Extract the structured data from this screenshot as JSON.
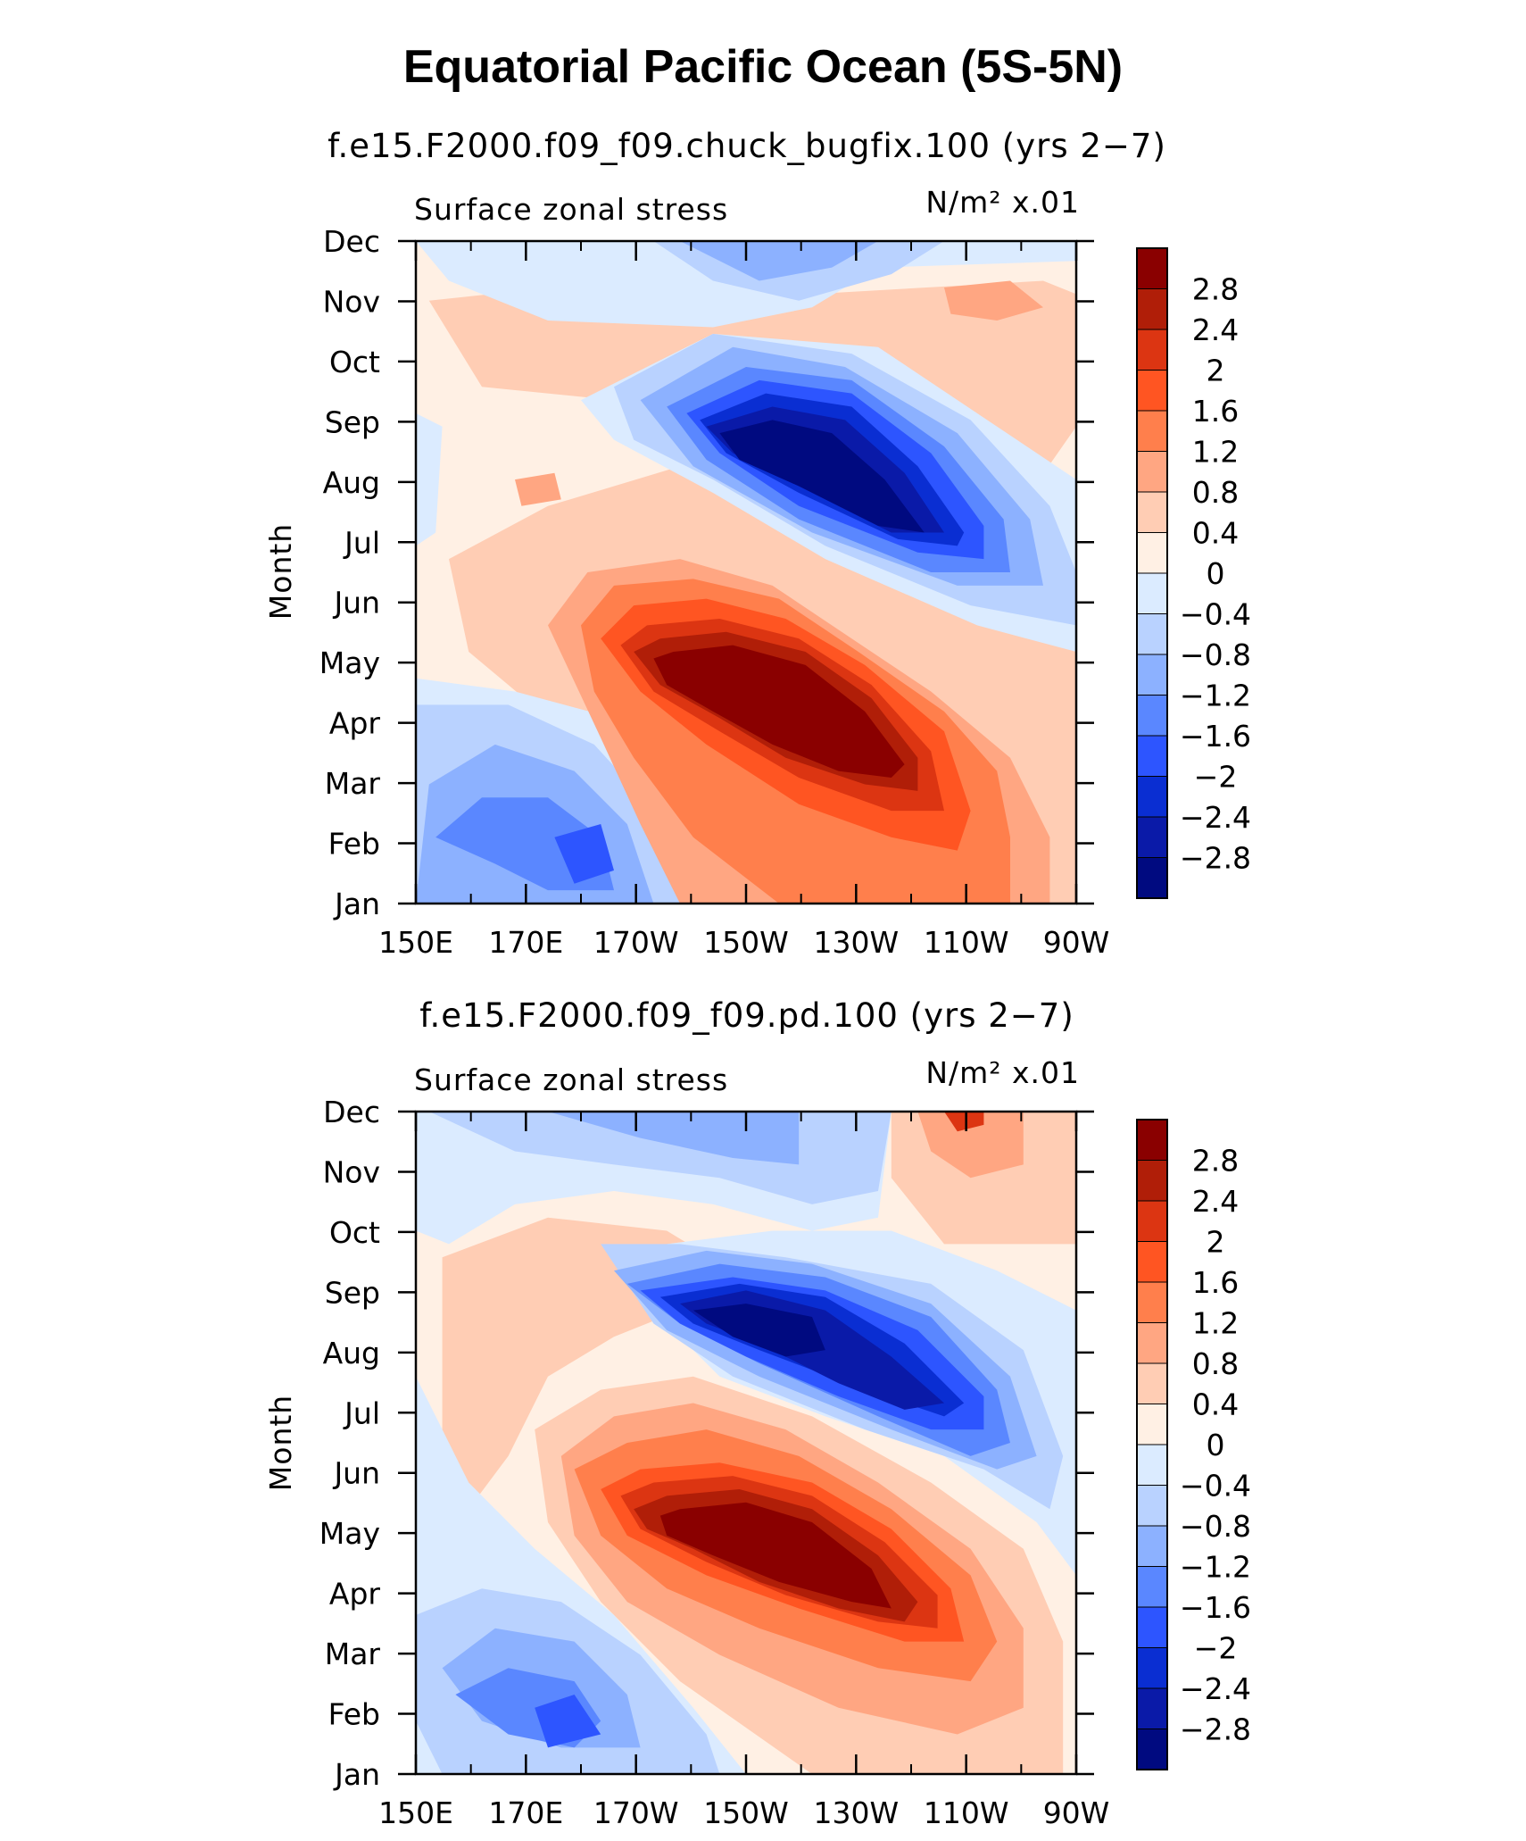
{
  "figure": {
    "title": "Equatorial Pacific Ocean (5S-5N)"
  },
  "chart_data": [
    {
      "type": "heatmap",
      "title": "f.e15.F2000.f09_f09.chuck_bugfix.100 (yrs 2−7)",
      "left_label": "Surface zonal stress",
      "right_label": "N/m² x.01",
      "xlabel": "",
      "ylabel": "Month",
      "x_ticks": [
        "150E",
        "170E",
        "170W",
        "150W",
        "130W",
        "110W",
        "90W"
      ],
      "x_values": [
        150,
        170,
        190,
        210,
        230,
        250,
        270
      ],
      "xlim": [
        150,
        270
      ],
      "y_ticks": [
        "Jan",
        "Feb",
        "Mar",
        "Apr",
        "May",
        "Jun",
        "Jul",
        "Aug",
        "Sep",
        "Oct",
        "Nov",
        "Dec"
      ],
      "ylim": [
        1,
        12
      ],
      "levels": [
        -2.8,
        -2.4,
        -2,
        -1.6,
        -1.2,
        -0.8,
        -0.4,
        0,
        0.4,
        0.8,
        1.2,
        1.6,
        2,
        2.4,
        2.8
      ],
      "features": [
        {
          "name": "positive core",
          "lon": 205,
          "month": 3.9,
          "value": 3.0
        },
        {
          "name": "negative core",
          "lon": 218,
          "month": 8.0,
          "value": -3.0
        },
        {
          "name": "west negative",
          "lon": 176,
          "month": 1.8,
          "value": -1.8
        }
      ]
    },
    {
      "type": "heatmap",
      "title": "f.e15.F2000.f09_f09.pd.100 (yrs 2−7)",
      "left_label": "Surface zonal stress",
      "right_label": "N/m² x.01",
      "xlabel": "",
      "ylabel": "Month",
      "x_ticks": [
        "150E",
        "170E",
        "170W",
        "150W",
        "130W",
        "110W",
        "90W"
      ],
      "x_values": [
        150,
        170,
        190,
        210,
        230,
        250,
        270
      ],
      "xlim": [
        150,
        270
      ],
      "y_ticks": [
        "Jan",
        "Feb",
        "Mar",
        "Apr",
        "May",
        "Jun",
        "Jul",
        "Aug",
        "Sep",
        "Oct",
        "Nov",
        "Dec"
      ],
      "ylim": [
        1,
        12
      ],
      "levels": [
        -2.8,
        -2.4,
        -2,
        -1.6,
        -1.2,
        -0.8,
        -0.4,
        0,
        0.4,
        0.8,
        1.2,
        1.6,
        2,
        2.4,
        2.8
      ],
      "features": [
        {
          "name": "positive core",
          "lon": 205,
          "month": 3.8,
          "value": 3.0
        },
        {
          "name": "negative core",
          "lon": 218,
          "month": 8.2,
          "value": -2.9
        },
        {
          "name": "west negative",
          "lon": 176,
          "month": 1.9,
          "value": -1.9
        }
      ]
    }
  ],
  "colorbar": {
    "labels": [
      "2.8",
      "2.4",
      "2",
      "1.6",
      "1.2",
      "0.8",
      "0.4",
      "0",
      "−0.4",
      "−0.8",
      "−1.2",
      "−1.6",
      "−2",
      "−2.4",
      "−2.8"
    ],
    "colors": [
      "#8a0000",
      "#b01e08",
      "#dc3512",
      "#ff5522",
      "#ff7f4c",
      "#ffa682",
      "#ffcdb4",
      "#fff0e4",
      "#dbebff",
      "#b9d2ff",
      "#8cb1ff",
      "#5a87ff",
      "#2d55ff",
      "#0a2ed2",
      "#0a1aa8",
      "#000a80"
    ]
  }
}
